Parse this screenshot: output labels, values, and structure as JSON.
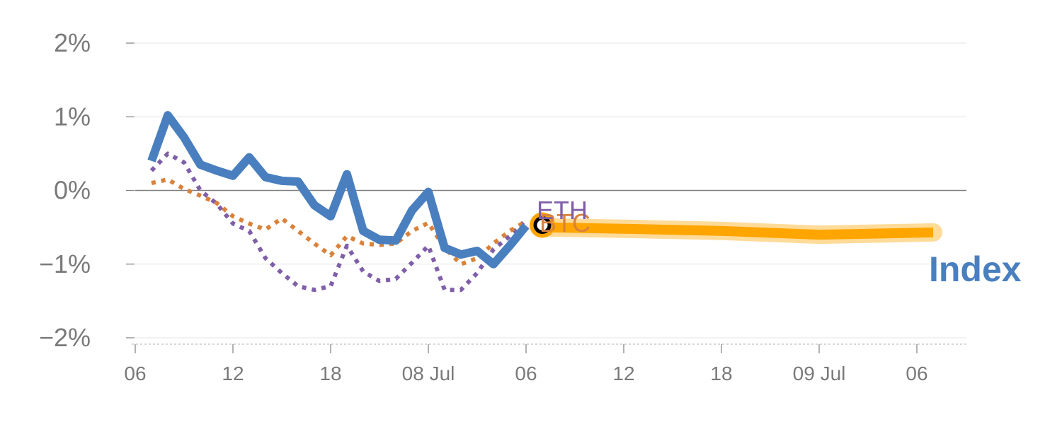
{
  "chart_data": {
    "type": "line",
    "ylim": [
      -2,
      2
    ],
    "y_ticks": [
      {
        "value": 2,
        "label": "2%"
      },
      {
        "value": 1,
        "label": "1%"
      },
      {
        "value": 0,
        "label": "0%"
      },
      {
        "value": -1,
        "label": "−1%"
      },
      {
        "value": -2,
        "label": "−2%"
      }
    ],
    "x_ticks": [
      {
        "value": 0,
        "label": "06"
      },
      {
        "value": 6,
        "label": "12"
      },
      {
        "value": 12,
        "label": "18"
      },
      {
        "value": 18,
        "label": "08 Jul"
      },
      {
        "value": 24,
        "label": "06"
      },
      {
        "value": 30,
        "label": "12"
      },
      {
        "value": 36,
        "label": "18"
      },
      {
        "value": 42,
        "label": "09 Jul"
      },
      {
        "value": 48,
        "label": "06"
      }
    ],
    "xlim": [
      0,
      51
    ],
    "grid": true,
    "colors": {
      "index": "#4a7fbf",
      "btc": "#d9823b",
      "eth": "#7f5fa8",
      "forecast": "#ffa500",
      "forecast_glow": "#ffd27f",
      "zero_line": "#808080",
      "grid": "#e6e6e6",
      "axis": "#cccccc"
    },
    "series": [
      {
        "key": "index",
        "x": [
          1,
          2,
          3,
          4,
          5,
          6,
          7,
          8,
          9,
          10,
          11,
          12,
          13,
          14,
          15,
          16,
          17,
          18,
          19,
          20,
          21,
          22,
          23,
          24
        ],
        "values": [
          0.4,
          1.02,
          0.72,
          0.35,
          0.27,
          0.2,
          0.45,
          0.18,
          0.13,
          0.12,
          -0.2,
          -0.35,
          0.22,
          -0.55,
          -0.67,
          -0.68,
          -0.27,
          -0.02,
          -0.78,
          -0.87,
          -0.82,
          -1.0,
          -0.75,
          -0.48
        ]
      },
      {
        "key": "btc",
        "name": "BTC",
        "x": [
          1,
          2,
          3,
          4,
          5,
          6,
          7,
          8,
          9,
          10,
          11,
          12,
          13,
          14,
          15,
          16,
          17,
          18,
          19,
          20,
          21,
          22,
          23,
          24
        ],
        "values": [
          0.1,
          0.15,
          0.02,
          -0.07,
          -0.17,
          -0.35,
          -0.45,
          -0.53,
          -0.38,
          -0.55,
          -0.72,
          -0.88,
          -0.62,
          -0.72,
          -0.74,
          -0.72,
          -0.55,
          -0.44,
          -0.78,
          -1.0,
          -0.92,
          -0.72,
          -0.55,
          -0.42
        ]
      },
      {
        "key": "eth",
        "name": "ETH",
        "x": [
          1,
          2,
          3,
          4,
          5,
          6,
          7,
          8,
          9,
          10,
          11,
          12,
          13,
          14,
          15,
          16,
          17,
          18,
          19,
          20,
          21,
          22,
          23,
          24
        ],
        "values": [
          0.27,
          0.5,
          0.38,
          0.0,
          -0.18,
          -0.45,
          -0.55,
          -0.92,
          -1.12,
          -1.3,
          -1.35,
          -1.3,
          -0.75,
          -1.1,
          -1.23,
          -1.2,
          -0.98,
          -0.75,
          -1.35,
          -1.35,
          -1.12,
          -0.8,
          -0.62,
          -0.4
        ]
      },
      {
        "key": "forecast",
        "x": [
          25,
          30,
          36,
          42,
          49
        ],
        "values": [
          -0.5,
          -0.52,
          -0.55,
          -0.6,
          -0.57
        ]
      }
    ],
    "current_point": {
      "x": 25,
      "value": -0.47
    },
    "labels": {
      "btc": "BTC",
      "eth": "ETH",
      "index": "Index"
    }
  }
}
